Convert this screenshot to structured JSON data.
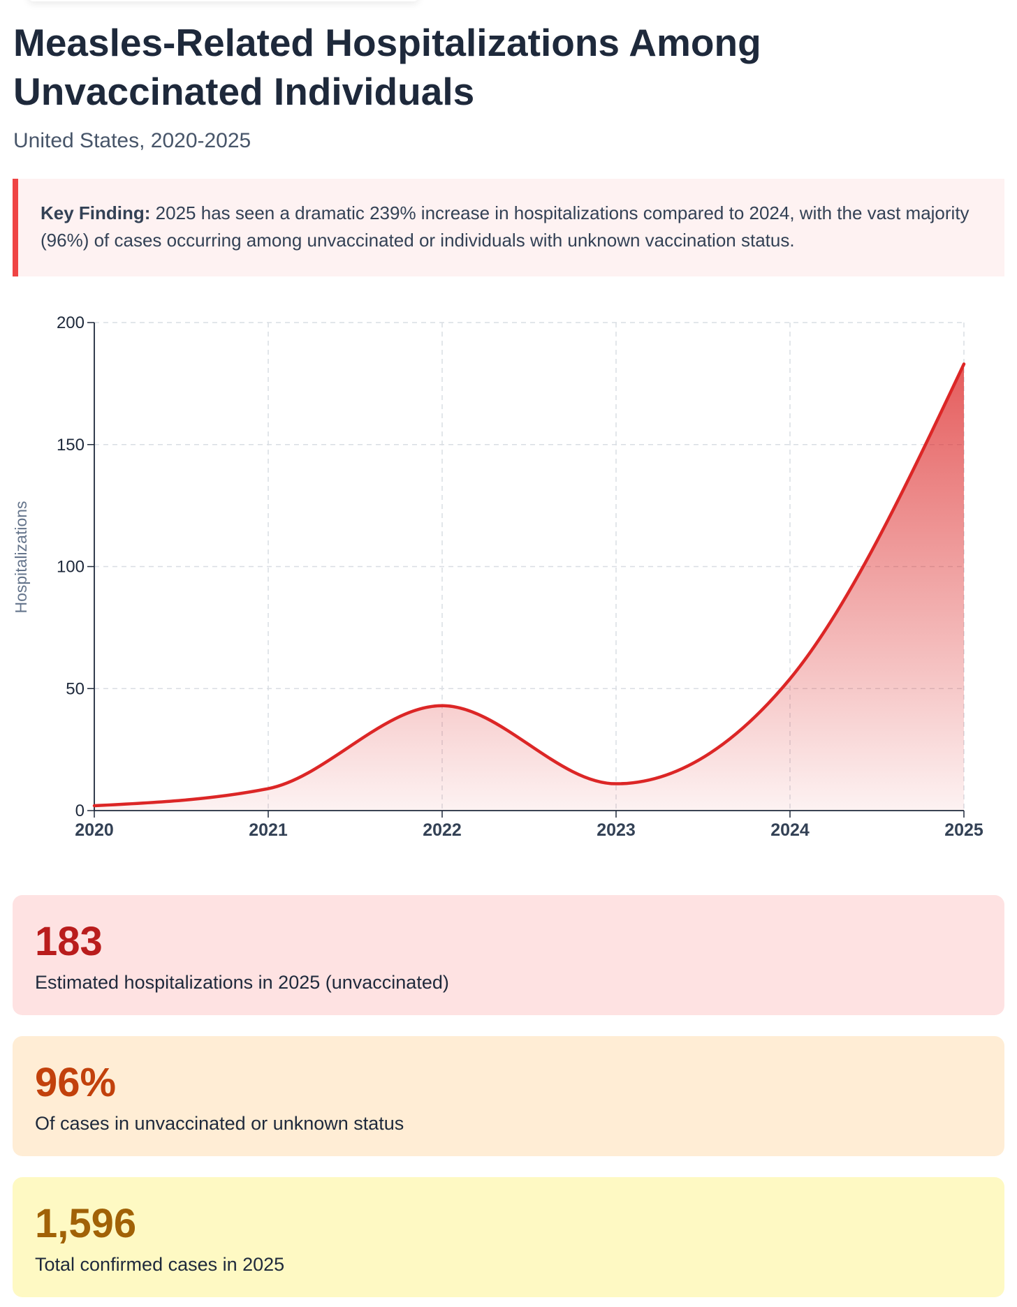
{
  "title": "Measles-Related Hospitalizations Among Unvaccinated Individuals",
  "subtitle": "United States, 2020-2025",
  "callout": {
    "label": "Key Finding:",
    "text": "2025 has seen a dramatic 239% increase in hospitalizations compared to 2024, with the vast majority (96%) of cases occurring among unvaccinated or individuals with unknown vaccination status.",
    "border_color": "#ef4444",
    "background_color": "#fef2f2"
  },
  "chart_data": {
    "type": "area",
    "title": "",
    "xlabel": "",
    "ylabel": "Hospitalizations",
    "categories": [
      "2020",
      "2021",
      "2022",
      "2023",
      "2024",
      "2025"
    ],
    "series": [
      {
        "name": "Hospitalizations",
        "values": [
          2,
          9,
          43,
          11,
          54,
          183
        ],
        "color": "#dc2626"
      }
    ],
    "ylim": [
      0,
      200
    ],
    "yticks": [
      0,
      50,
      100,
      150,
      200
    ],
    "grid": true,
    "legend": "none"
  },
  "stats": [
    {
      "value": "183",
      "label": "Estimated hospitalizations in 2025 (unvaccinated)",
      "value_color": "#b91c1c",
      "background_color": "#fee2e2"
    },
    {
      "value": "96%",
      "label": "Of cases in unvaccinated or unknown status",
      "value_color": "#c2410c",
      "background_color": "#ffedd5"
    },
    {
      "value": "1,596",
      "label": "Total confirmed cases in 2025",
      "value_color": "#a16207",
      "background_color": "#fef9c3"
    }
  ]
}
